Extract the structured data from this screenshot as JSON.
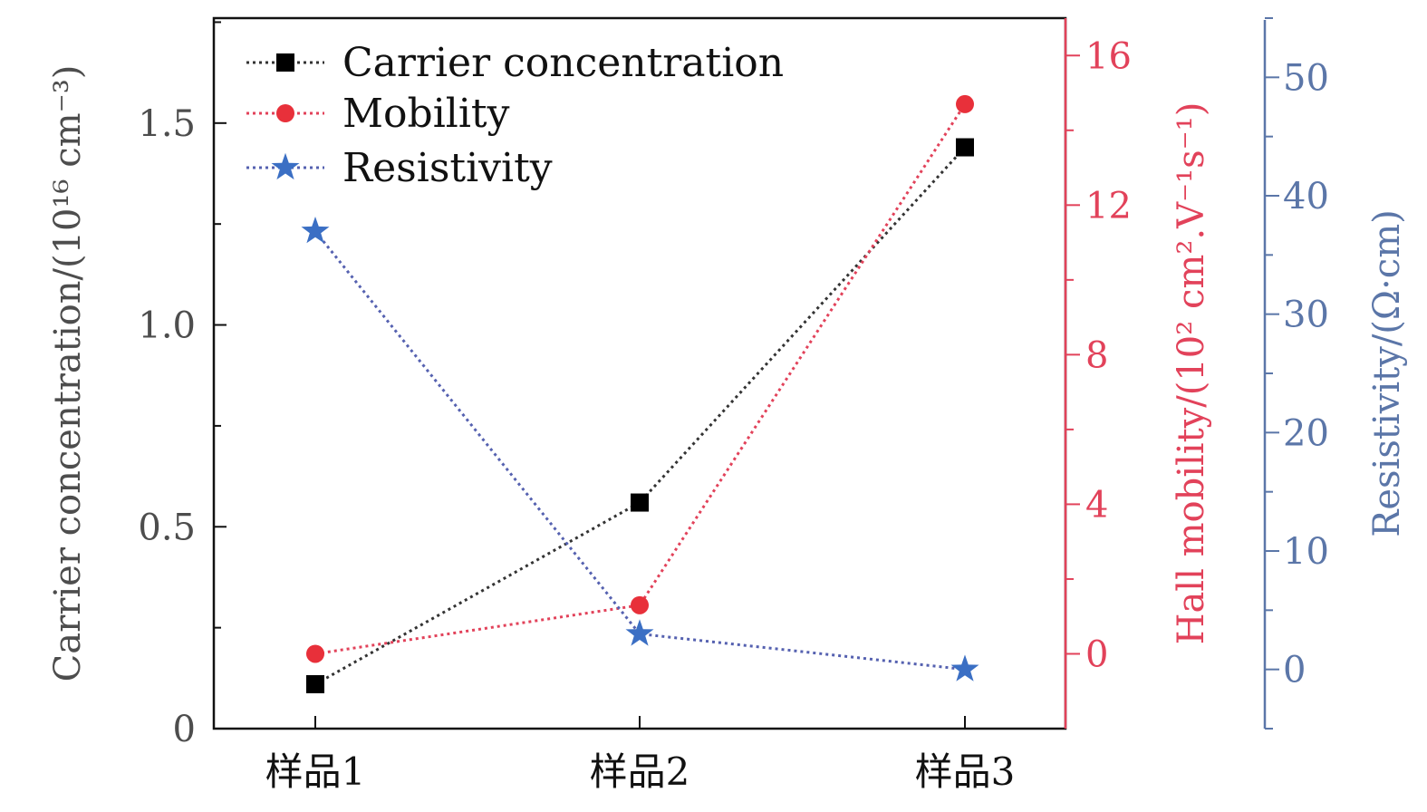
{
  "chart_data": {
    "type": "line",
    "categories": [
      "样品1",
      "样品2",
      "样品3"
    ],
    "axes": {
      "left": {
        "label": "Carrier concentration/(10¹⁶ cm⁻³)",
        "ylim": [
          0,
          1.76
        ],
        "ticks": [
          "0",
          "0.5",
          "1.0",
          "1.5"
        ],
        "tick_values": [
          0,
          0.5,
          1.0,
          1.5
        ],
        "color": "#4d4d4d"
      },
      "right1": {
        "label": "Hall mobility/(10² cm².V⁻¹s⁻¹)",
        "ylim": [
          -2,
          17
        ],
        "ticks": [
          "0",
          "4",
          "8",
          "12",
          "16"
        ],
        "tick_values": [
          0,
          4,
          8,
          12,
          16
        ],
        "color": "#e2425a"
      },
      "right2": {
        "label": "Resistivity/(Ω·cm)",
        "ylim": [
          -5,
          55
        ],
        "ticks": [
          "0",
          "10",
          "20",
          "30",
          "40",
          "50"
        ],
        "tick_values": [
          0,
          10,
          20,
          30,
          40,
          50
        ],
        "color": "#5b76a8"
      }
    },
    "series": [
      {
        "name": "Carrier concentration",
        "axis": "left",
        "marker": "square",
        "color": "#000000",
        "line_color": "#333333",
        "values": [
          0.11,
          0.56,
          1.44
        ]
      },
      {
        "name": "Mobility",
        "axis": "right1",
        "marker": "circle",
        "color": "#e8303a",
        "line_color": "#e2425a",
        "values": [
          0.0,
          1.3,
          14.7
        ]
      },
      {
        "name": "Resistivity",
        "axis": "right2",
        "marker": "star",
        "color": "#3b6fc4",
        "line_color": "#5561b0",
        "values": [
          37.0,
          3.0,
          0.0
        ]
      }
    ],
    "legend": "top-left",
    "grid": false
  }
}
